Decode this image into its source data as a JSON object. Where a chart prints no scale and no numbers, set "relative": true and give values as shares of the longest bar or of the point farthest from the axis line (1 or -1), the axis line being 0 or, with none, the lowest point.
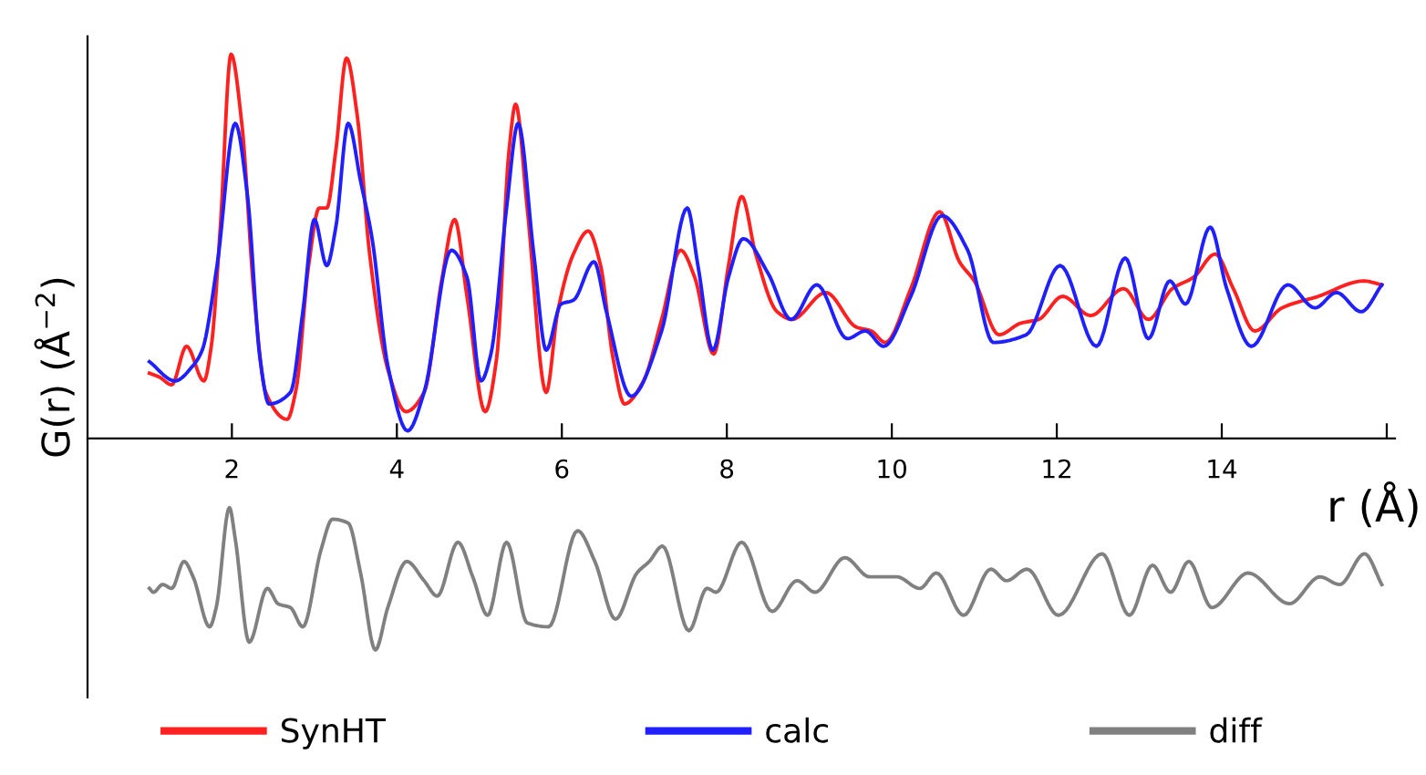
{
  "chart_data": {
    "type": "line",
    "relative": true,
    "xlabel": "r (Å)",
    "ylabel": "G(r) (Å$^{−2}$)",
    "xlim": [
      0.25,
      16.1
    ],
    "xticks": [
      2,
      4,
      6,
      8,
      10,
      12,
      14,
      {
        "value": 16,
        "label": null
      }
    ],
    "grid": false,
    "legend": "bottom",
    "marker": "none",
    "line_style": "solid",
    "series": [
      {
        "name": "SynHT",
        "color": "#ff2020",
        "x": [
          1.0,
          1.12,
          1.27,
          1.45,
          1.66,
          1.75,
          1.86,
          1.99,
          2.12,
          2.27,
          2.41,
          2.67,
          2.78,
          2.93,
          3.06,
          3.15,
          3.26,
          3.39,
          3.52,
          3.67,
          3.89,
          4.11,
          4.33,
          4.55,
          4.7,
          4.85,
          5.07,
          5.21,
          5.36,
          5.44,
          5.58,
          5.81,
          5.95,
          6.14,
          6.32,
          6.47,
          6.62,
          6.76,
          6.99,
          7.21,
          7.44,
          7.61,
          7.84,
          8.02,
          8.18,
          8.35,
          8.61,
          8.79,
          9.2,
          9.57,
          9.75,
          9.92,
          10.23,
          10.58,
          10.82,
          11.0,
          11.3,
          11.56,
          11.78,
          12.07,
          12.41,
          12.81,
          13.11,
          13.4,
          13.66,
          13.92,
          14.14,
          14.4,
          14.73,
          15.17,
          15.72,
          15.94
        ],
        "values": [
          0.17,
          0.16,
          0.14,
          0.24,
          0.15,
          0.24,
          0.55,
          1.0,
          0.82,
          0.37,
          0.12,
          0.05,
          0.13,
          0.45,
          0.6,
          0.6,
          0.75,
          0.99,
          0.84,
          0.48,
          0.18,
          0.07,
          0.12,
          0.42,
          0.57,
          0.37,
          0.07,
          0.21,
          0.75,
          0.87,
          0.6,
          0.12,
          0.33,
          0.48,
          0.54,
          0.45,
          0.21,
          0.09,
          0.15,
          0.31,
          0.49,
          0.42,
          0.22,
          0.45,
          0.63,
          0.48,
          0.33,
          0.31,
          0.38,
          0.29,
          0.28,
          0.25,
          0.39,
          0.59,
          0.46,
          0.41,
          0.27,
          0.3,
          0.31,
          0.37,
          0.32,
          0.39,
          0.31,
          0.39,
          0.42,
          0.48,
          0.39,
          0.28,
          0.34,
          0.37,
          0.41,
          0.4
        ]
      },
      {
        "name": "calc",
        "color": "#2020ff",
        "x": [
          1.0,
          1.31,
          1.53,
          1.64,
          1.82,
          2.04,
          2.19,
          2.34,
          2.45,
          2.71,
          2.86,
          3.0,
          3.15,
          3.26,
          3.41,
          3.56,
          3.7,
          3.89,
          4.13,
          4.33,
          4.66,
          4.85,
          5.02,
          5.14,
          5.33,
          5.47,
          5.66,
          5.81,
          5.99,
          6.14,
          6.39,
          6.54,
          6.84,
          7.21,
          7.52,
          7.65,
          7.83,
          8.02,
          8.2,
          8.5,
          8.78,
          9.09,
          9.46,
          9.68,
          9.9,
          10.23,
          10.61,
          10.92,
          11.23,
          11.63,
          12.04,
          12.48,
          12.83,
          13.11,
          13.37,
          13.56,
          13.86,
          14.06,
          14.36,
          14.8,
          15.13,
          15.39,
          15.69,
          15.94
        ],
        "values": [
          0.2,
          0.15,
          0.19,
          0.23,
          0.45,
          0.82,
          0.63,
          0.21,
          0.09,
          0.12,
          0.33,
          0.57,
          0.45,
          0.55,
          0.82,
          0.67,
          0.52,
          0.19,
          0.02,
          0.12,
          0.49,
          0.42,
          0.15,
          0.22,
          0.6,
          0.82,
          0.48,
          0.23,
          0.35,
          0.36,
          0.46,
          0.33,
          0.11,
          0.28,
          0.6,
          0.45,
          0.23,
          0.42,
          0.52,
          0.43,
          0.31,
          0.4,
          0.26,
          0.28,
          0.24,
          0.37,
          0.58,
          0.49,
          0.25,
          0.27,
          0.45,
          0.24,
          0.47,
          0.26,
          0.41,
          0.35,
          0.55,
          0.39,
          0.24,
          0.4,
          0.34,
          0.38,
          0.33,
          0.4
        ]
      },
      {
        "name": "diff",
        "color": "#808080",
        "x": [
          1.0,
          1.05,
          1.16,
          1.27,
          1.42,
          1.53,
          1.73,
          1.81,
          1.97,
          2.04,
          2.21,
          2.43,
          2.56,
          2.71,
          2.86,
          3.08,
          3.22,
          3.41,
          3.56,
          3.74,
          3.89,
          4.12,
          4.33,
          4.49,
          4.74,
          4.92,
          5.1,
          5.33,
          5.58,
          5.84,
          6.19,
          6.4,
          6.65,
          6.91,
          7.06,
          7.22,
          7.54,
          7.76,
          7.87,
          8.18,
          8.55,
          8.85,
          9.07,
          9.43,
          9.73,
          10.06,
          10.34,
          10.54,
          10.87,
          11.2,
          11.39,
          11.64,
          12.02,
          12.55,
          12.88,
          13.16,
          13.38,
          13.6,
          13.88,
          14.32,
          14.82,
          15.19,
          15.43,
          15.73,
          15.94
        ],
        "values": [
          -0.39,
          -0.4,
          -0.38,
          -0.39,
          -0.32,
          -0.36,
          -0.49,
          -0.44,
          -0.18,
          -0.26,
          -0.53,
          -0.39,
          -0.43,
          -0.44,
          -0.49,
          -0.29,
          -0.21,
          -0.22,
          -0.35,
          -0.55,
          -0.44,
          -0.32,
          -0.37,
          -0.41,
          -0.27,
          -0.36,
          -0.46,
          -0.27,
          -0.48,
          -0.49,
          -0.24,
          -0.32,
          -0.47,
          -0.35,
          -0.32,
          -0.28,
          -0.5,
          -0.39,
          -0.4,
          -0.27,
          -0.45,
          -0.37,
          -0.4,
          -0.31,
          -0.36,
          -0.36,
          -0.39,
          -0.35,
          -0.46,
          -0.34,
          -0.37,
          -0.34,
          -0.46,
          -0.3,
          -0.46,
          -0.33,
          -0.4,
          -0.32,
          -0.44,
          -0.35,
          -0.43,
          -0.36,
          -0.38,
          -0.3,
          -0.38
        ]
      }
    ]
  }
}
